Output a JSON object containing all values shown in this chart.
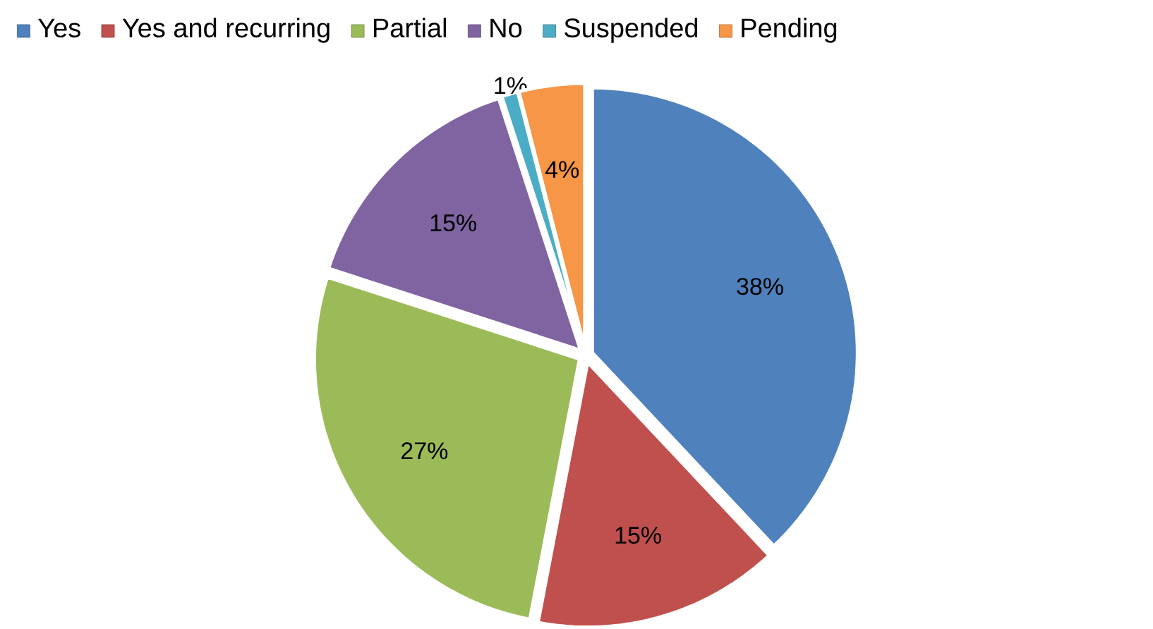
{
  "chart_data": {
    "type": "pie",
    "categories": [
      "Yes",
      "Yes and recurring",
      "Partial",
      "No",
      "Suspended",
      "Pending"
    ],
    "values": [
      38,
      15,
      27,
      15,
      1,
      4
    ],
    "value_labels": [
      "38%",
      "15%",
      "27%",
      "15%",
      "1%",
      "4%"
    ],
    "colors": [
      "#4f81bd",
      "#c0504d",
      "#9bbb59",
      "#8064a2",
      "#4bacc6",
      "#f79646"
    ],
    "legend": "top"
  }
}
